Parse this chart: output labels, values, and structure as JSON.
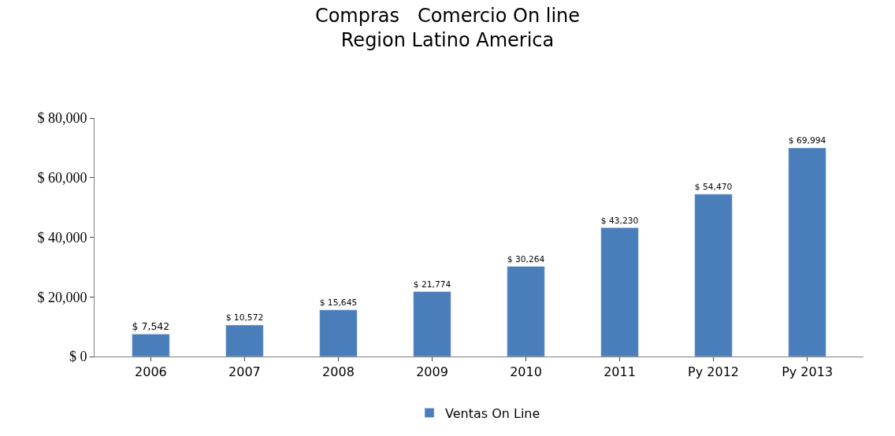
{
  "chart_data": {
    "type": "bar",
    "title": "Compras   Comercio On line\nRegion Latino America",
    "categories": [
      "2006",
      "2007",
      "2008",
      "2009",
      "2010",
      "2011",
      "Py 2012",
      "Py 2013"
    ],
    "series": [
      {
        "name": "Ventas On Line",
        "color": "#4a7ebb",
        "values": [
          7542,
          10572,
          15645,
          21774,
          30264,
          43230,
          54470,
          69994
        ],
        "value_labels": [
          "$ 7,542",
          "$ 10,572",
          "$ 15,645",
          "$ 21,774",
          "$ 30,264",
          "$ 43,230",
          "$ 54,470",
          "$ 69,994"
        ]
      }
    ],
    "ylim": [
      0,
      80000
    ],
    "yticks": [
      {
        "value": 0,
        "label": "$ 0"
      },
      {
        "value": 20000,
        "label": "$ 20,000"
      },
      {
        "value": 40000,
        "label": "$ 40,000"
      },
      {
        "value": 60000,
        "label": "$ 60,000"
      },
      {
        "value": 80000,
        "label": "$ 80,000"
      }
    ],
    "grid": false,
    "legend": "bottom"
  }
}
